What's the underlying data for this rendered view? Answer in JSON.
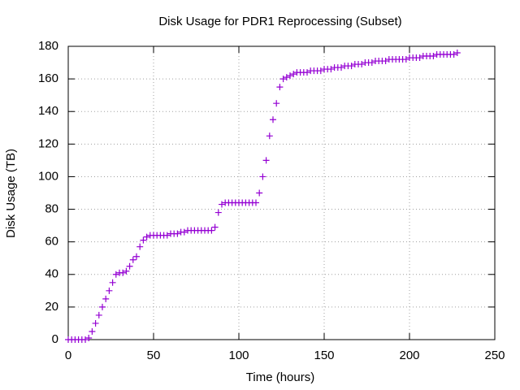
{
  "chart_data": {
    "type": "scatter",
    "title": "Disk Usage for PDR1 Reprocessing (Subset)",
    "x_label": "Time (hours)",
    "y_label": "Disk Usage (TB)",
    "xlim": [
      0,
      250
    ],
    "ylim": [
      0,
      180
    ],
    "xticks": [
      0,
      50,
      100,
      150,
      200,
      250
    ],
    "yticks": [
      0,
      20,
      40,
      60,
      80,
      100,
      120,
      140,
      160,
      180
    ],
    "grid": true,
    "series": [
      {
        "color": "#9400d3",
        "x": [
          0,
          2,
          4,
          6,
          8,
          10,
          12,
          14,
          16,
          18,
          20,
          22,
          24,
          26,
          28,
          30,
          32,
          34,
          36,
          38,
          40,
          42,
          44,
          46,
          48,
          50,
          52,
          54,
          56,
          58,
          60,
          62,
          64,
          66,
          68,
          70,
          72,
          74,
          76,
          78,
          80,
          82,
          84,
          86,
          88,
          90,
          92,
          94,
          96,
          98,
          100,
          102,
          104,
          106,
          108,
          110,
          112,
          114,
          116,
          118,
          120,
          122,
          124,
          126,
          128,
          130,
          132,
          134,
          136,
          138,
          140,
          142,
          144,
          146,
          148,
          150,
          152,
          154,
          156,
          158,
          160,
          162,
          164,
          166,
          168,
          170,
          172,
          174,
          176,
          178,
          180,
          182,
          184,
          186,
          188,
          190,
          192,
          194,
          196,
          198,
          200,
          202,
          204,
          206,
          208,
          210,
          212,
          214,
          216,
          218,
          220,
          222,
          224,
          226,
          228
        ],
        "values": [
          0,
          0,
          0,
          0,
          0,
          0,
          1,
          5,
          10,
          15,
          20,
          25,
          30,
          35,
          40,
          41,
          41,
          42,
          45,
          49,
          51,
          57,
          61,
          63,
          64,
          64,
          64,
          64,
          64,
          64,
          65,
          65,
          65,
          66,
          66,
          67,
          67,
          67,
          67,
          67,
          67,
          67,
          67,
          69,
          78,
          83,
          84,
          84,
          84,
          84,
          84,
          84,
          84,
          84,
          84,
          84,
          90,
          100,
          110,
          125,
          135,
          145,
          155,
          160,
          161,
          162,
          163,
          164,
          164,
          164,
          164,
          165,
          165,
          165,
          165,
          166,
          166,
          166,
          167,
          167,
          167,
          168,
          168,
          168,
          169,
          169,
          169,
          170,
          170,
          170,
          171,
          171,
          171,
          171,
          172,
          172,
          172,
          172,
          172,
          172,
          173,
          173,
          173,
          173,
          174,
          174,
          174,
          174,
          175,
          175,
          175,
          175,
          175,
          175,
          176
        ]
      }
    ]
  }
}
